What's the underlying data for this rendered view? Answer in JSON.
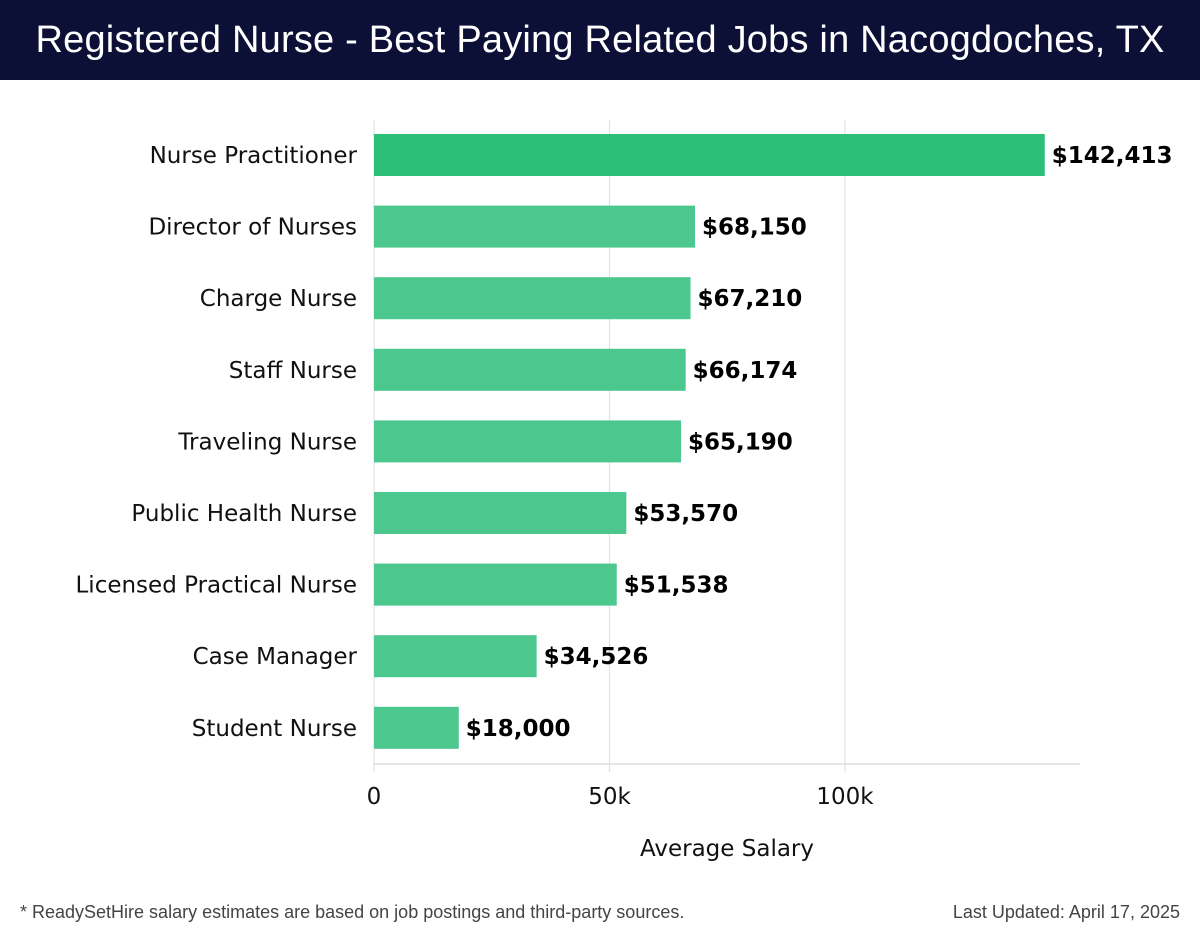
{
  "header": {
    "title": "Registered Nurse - Best Paying Related Jobs in Nacogdoches, TX"
  },
  "footer": {
    "note": "* ReadySetHire salary estimates are based on job postings and third-party sources.",
    "updated": "Last Updated: April 17, 2025"
  },
  "colors": {
    "header_bg": "#0c0f36",
    "top_bar": "#2bbf78",
    "bar": "#4cc78d",
    "grid": "#e2e2e2"
  },
  "chart_data": {
    "type": "bar",
    "orientation": "horizontal",
    "title": "Registered Nurse - Best Paying Related Jobs in Nacogdoches, TX",
    "xlabel": "Average Salary",
    "ylabel": "",
    "xlim": [
      0,
      150000
    ],
    "grid": true,
    "x_ticks": [
      {
        "value": 0,
        "label": "0"
      },
      {
        "value": 50000,
        "label": "50k"
      },
      {
        "value": 100000,
        "label": "100k"
      }
    ],
    "categories": [
      "Nurse Practitioner",
      "Director of Nurses",
      "Charge Nurse",
      "Staff Nurse",
      "Traveling Nurse",
      "Public Health Nurse",
      "Licensed Practical Nurse",
      "Case Manager",
      "Student Nurse"
    ],
    "values": [
      142413,
      68150,
      67210,
      66174,
      65190,
      53570,
      51538,
      34526,
      18000
    ],
    "value_labels": [
      "$142,413",
      "$68,150",
      "$67,210",
      "$66,174",
      "$65,190",
      "$53,570",
      "$51,538",
      "$34,526",
      "$18,000"
    ]
  }
}
